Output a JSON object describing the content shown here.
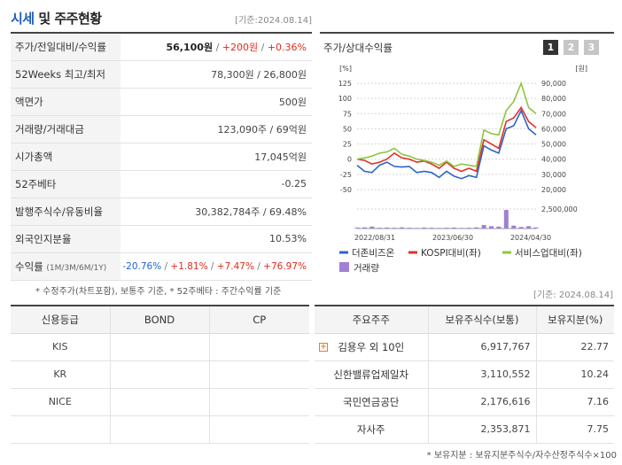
{
  "header": {
    "title_main": "시세",
    "title_rest": " 및 주주현황",
    "date": "[기준:2024.08.14]"
  },
  "quote": [
    {
      "label": "주가/전일대비/수익률",
      "price": "56,100원",
      "change": "+200원",
      "rate": "+0.36%"
    },
    {
      "label": "52Weeks 최고/최저",
      "value": "78,300원 / 26,800원"
    },
    {
      "label": "액면가",
      "value": "500원"
    },
    {
      "label": "거래량/거래대금",
      "value": "123,090주 / 69억원"
    },
    {
      "label": "시가총액",
      "value": "17,045억원"
    },
    {
      "label": "52주베타",
      "value": "-0.25"
    },
    {
      "label": "발행주식수/유동비율",
      "value": "30,382,784주 / 69.48%"
    },
    {
      "label": "외국인지분율",
      "value": "10.53%"
    },
    {
      "label": "수익률",
      "sub": "(1M/3M/6M/1Y)",
      "r1": "-20.76%",
      "r2": "+1.81%",
      "r3": "+7.47%",
      "r4": "+76.97%"
    }
  ],
  "note1": "* 수정주가(차트포함), 보통주 기준, * 52주베타 : 주간수익률 기준",
  "chart_panel": {
    "title": "주가/상대수익률",
    "pages": [
      "1",
      "2",
      "3"
    ],
    "left_unit": "[%]",
    "right_unit": "[원]"
  },
  "chart_data": {
    "type": "line",
    "x_ticks": [
      "2022/08/31",
      "2023/06/30",
      "2024/04/30"
    ],
    "y_left": {
      "unit": "%",
      "range": [
        -50,
        125
      ],
      "ticks": [
        125,
        100,
        75,
        50,
        25,
        0,
        -25,
        -50
      ]
    },
    "y_right": {
      "unit": "원",
      "range": [
        20000,
        90000
      ],
      "ticks": [
        "90,000",
        "80,000",
        "70,000",
        "60,000",
        "50,000",
        "40,000",
        "30,000",
        "20,000"
      ]
    },
    "volume_tick": "2,500,000",
    "series": [
      {
        "name": "더존비즈온",
        "color": "#2f63c7",
        "values": [
          -10,
          -20,
          -22,
          -10,
          -5,
          -12,
          -13,
          -12,
          -22,
          -20,
          -22,
          -30,
          -20,
          -28,
          -32,
          -27,
          -30,
          22,
          15,
          10,
          50,
          55,
          80,
          50,
          40
        ]
      },
      {
        "name": "KOSPI대비(좌)",
        "color": "#e0312a",
        "values": [
          0,
          -2,
          -8,
          -5,
          0,
          10,
          2,
          0,
          -5,
          -3,
          -8,
          -15,
          -5,
          -15,
          -20,
          -15,
          -20,
          32,
          25,
          18,
          62,
          68,
          85,
          62,
          52
        ]
      },
      {
        "name": "서비스업대비(좌)",
        "color": "#8dc63f",
        "values": [
          0,
          2,
          5,
          10,
          12,
          18,
          8,
          5,
          0,
          -2,
          -5,
          -10,
          -3,
          -12,
          -8,
          -10,
          -12,
          48,
          42,
          40,
          80,
          95,
          125,
          85,
          75
        ]
      }
    ],
    "volume": {
      "name": "거래량",
      "color": "#a07fd6",
      "values": [
        0.05,
        0.06,
        0.1,
        0.04,
        0.05,
        0.04,
        0.06,
        0.04,
        0.03,
        0.05,
        0.04,
        0.03,
        0.04,
        0.05,
        0.03,
        0.04,
        0.06,
        0.18,
        0.12,
        0.1,
        0.95,
        0.15,
        0.08,
        0.12,
        0.06
      ]
    }
  },
  "credit": {
    "headers": [
      "신용등급",
      "BOND",
      "CP"
    ],
    "rows": [
      [
        "KIS",
        "",
        ""
      ],
      [
        "KR",
        "",
        ""
      ],
      [
        "NICE",
        "",
        ""
      ],
      [
        "",
        "",
        ""
      ]
    ]
  },
  "note2": "[기준: 2024.08.14]",
  "holders": {
    "headers": [
      "주요주주",
      "보유주식수(보통)",
      "보유지분(%)"
    ],
    "rows": [
      {
        "name": "김용우 외 10인",
        "shares": "6,917,767",
        "pct": "22.77"
      },
      {
        "name": "신한밸류업제일차",
        "shares": "3,110,552",
        "pct": "10.24"
      },
      {
        "name": "국민연금공단",
        "shares": "2,176,616",
        "pct": "7.16"
      },
      {
        "name": "자사주",
        "shares": "2,353,871",
        "pct": "7.75"
      }
    ]
  },
  "note3": "* 보유지분 : 보유지분주식수/자수산정주식수×100"
}
